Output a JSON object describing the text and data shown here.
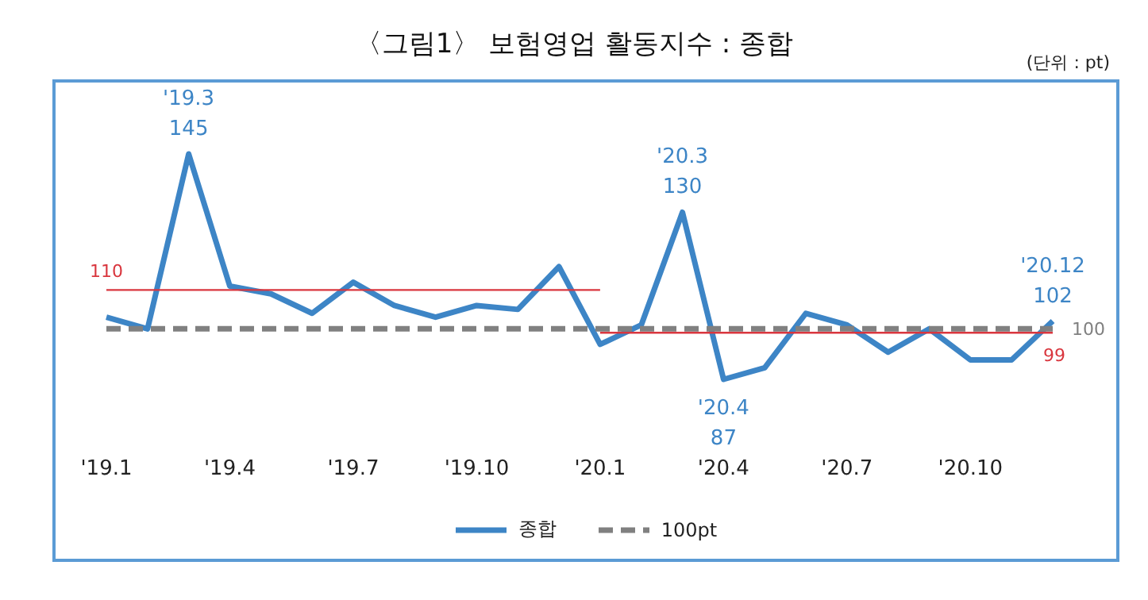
{
  "chart_data": {
    "type": "line",
    "title": "〈그림1〉 보험영업  활동지수 : 종합",
    "subtitle": "(단위 : pt)",
    "categories": [
      "'19.1",
      null,
      null,
      "'19.4",
      null,
      null,
      "'19.7",
      null,
      null,
      "'19.10",
      null,
      null,
      "'20.1",
      null,
      null,
      "'20.4",
      null,
      null,
      "'20.7",
      null,
      null,
      "'20.10",
      null,
      null
    ],
    "annotations": [
      "'19.3",
      "'20.3",
      "'20.4",
      "'20.12"
    ],
    "tick_labels": "x",
    "grid": false,
    "legend": "bottom",
    "marker": "none",
    "series": [
      {
        "name": "종합",
        "color": "#3d85c6",
        "line_style": "solid",
        "values": [
          103,
          100,
          145,
          111,
          109,
          104,
          112,
          106,
          103,
          106,
          105,
          116,
          96,
          101,
          130,
          87,
          90,
          104,
          101,
          94,
          100,
          92,
          92,
          102
        ],
        "value_labels": [
          null,
          null,
          "145",
          null,
          null,
          null,
          null,
          null,
          null,
          null,
          null,
          null,
          null,
          null,
          "130",
          "87",
          null,
          null,
          null,
          null,
          null,
          null,
          null,
          "102"
        ]
      },
      {
        "name": "100pt",
        "color": "#808080",
        "line_style": "dashed",
        "values": [
          100,
          100,
          100,
          100,
          100,
          100,
          100,
          100,
          100,
          100,
          100,
          100,
          100,
          100,
          100,
          100,
          100,
          100,
          100,
          100,
          100,
          100,
          100,
          100
        ],
        "value_labels": [
          null,
          null,
          null,
          null,
          null,
          null,
          null,
          null,
          null,
          null,
          null,
          null,
          null,
          null,
          null,
          null,
          null,
          null,
          null,
          null,
          null,
          null,
          null,
          "100"
        ]
      },
      {
        "color": "#d9363e",
        "line_style": "solid",
        "values": [
          110,
          110,
          110,
          110,
          110,
          110,
          110,
          110,
          110,
          110,
          110,
          110,
          110,
          null,
          null,
          null,
          null,
          null,
          null,
          null,
          null,
          null,
          null,
          null
        ],
        "value_labels": [
          "110",
          null,
          null,
          null,
          null,
          null,
          null,
          null,
          null,
          null,
          null,
          null,
          null,
          null,
          null,
          null,
          null,
          null,
          null,
          null,
          null,
          null,
          null,
          null
        ]
      },
      {
        "color": "#d9363e",
        "line_style": "solid",
        "values": [
          null,
          null,
          null,
          null,
          null,
          null,
          null,
          null,
          null,
          null,
          null,
          null,
          99,
          99,
          99,
          99,
          99,
          99,
          99,
          99,
          99,
          99,
          99,
          99
        ],
        "value_labels": [
          null,
          null,
          null,
          null,
          null,
          null,
          null,
          null,
          null,
          null,
          null,
          null,
          null,
          null,
          null,
          null,
          null,
          null,
          null,
          null,
          null,
          null,
          null,
          "99"
        ]
      }
    ]
  }
}
